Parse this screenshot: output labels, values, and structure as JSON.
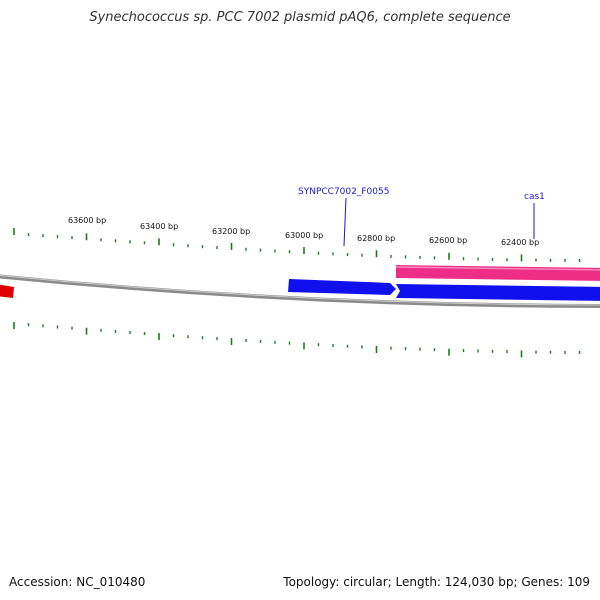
{
  "header": {
    "title": "Synechococcus sp. PCC 7002 plasmid pAQ6, complete sequence"
  },
  "footer": {
    "accession": "Accession: NC_010480",
    "stats": "Topology: circular; Length: 124,030 bp; Genes: 109"
  },
  "map": {
    "tick_labels": [
      "63600 bp",
      "63400 bp",
      "63200 bp",
      "63000 bp",
      "62800 bp",
      "62600 bp",
      "62400 bp"
    ],
    "gene_labels": [
      "SYNPCC7002_F0055",
      "cas1"
    ],
    "colors": {
      "backbone": "#8a8a8a",
      "tick": "#1e7a1e",
      "gene_red": "#e00000",
      "gene_blue": "#1010ee",
      "gene_pink": "#ee2d86",
      "label_line": "#1a1acc"
    }
  }
}
